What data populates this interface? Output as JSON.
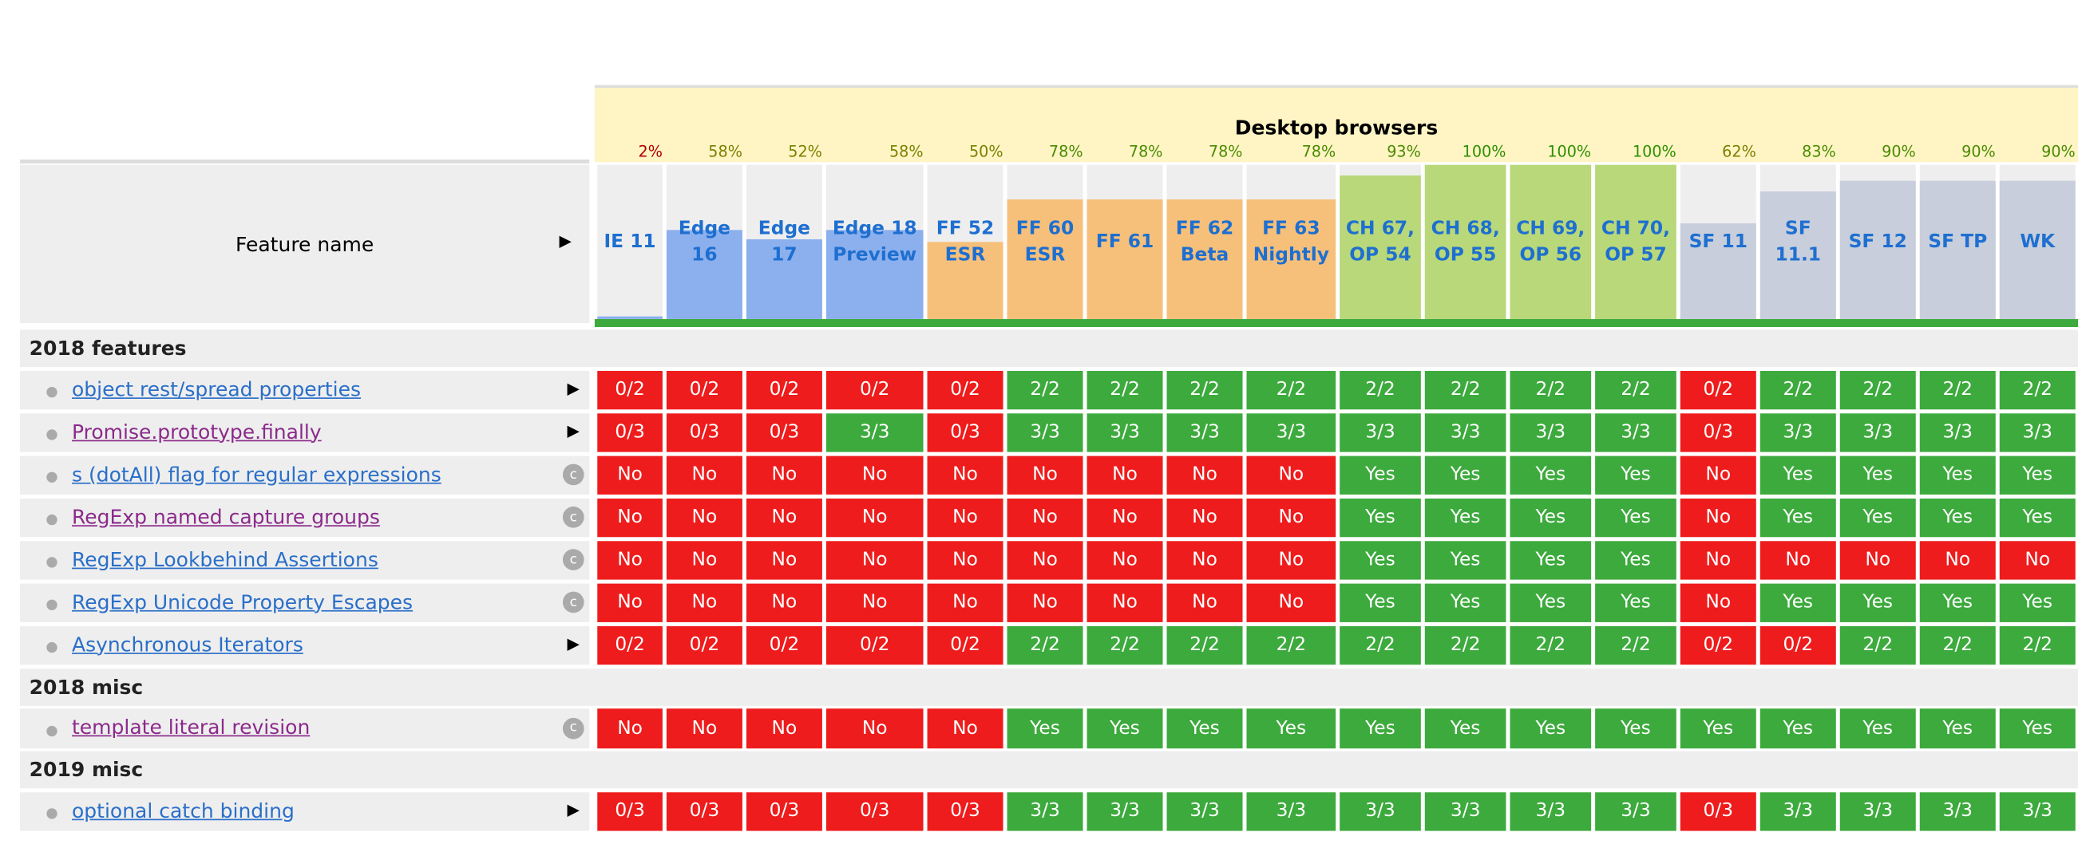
{
  "header": {
    "title": "Desktop browsers",
    "feature_column": "Feature name",
    "feature_column_icon": "▶"
  },
  "browsers": [
    {
      "name": "IE 11",
      "percent": "2%",
      "color": "#8cb0ee"
    },
    {
      "name": "Edge 16",
      "percent": "58%",
      "color": "#8cb0ee"
    },
    {
      "name": "Edge 17",
      "percent": "52%",
      "color": "#8cb0ee"
    },
    {
      "name": "Edge 18 Preview",
      "percent": "58%",
      "color": "#8cb0ee"
    },
    {
      "name": "FF 52 ESR",
      "percent": "50%",
      "color": "#f6c07a"
    },
    {
      "name": "FF 60 ESR",
      "percent": "78%",
      "color": "#f6c07a"
    },
    {
      "name": "FF 61",
      "percent": "78%",
      "color": "#f6c07a"
    },
    {
      "name": "FF 62 Beta",
      "percent": "78%",
      "color": "#f6c07a"
    },
    {
      "name": "FF 63 Nightly",
      "percent": "78%",
      "color": "#f6c07a"
    },
    {
      "name": "CH 67, OP 54",
      "percent": "93%",
      "color": "#b8d87a"
    },
    {
      "name": "CH 68, OP 55",
      "percent": "100%",
      "color": "#b8d87a"
    },
    {
      "name": "CH 69, OP 56",
      "percent": "100%",
      "color": "#b8d87a"
    },
    {
      "name": "CH 70, OP 57",
      "percent": "100%",
      "color": "#b8d87a"
    },
    {
      "name": "SF 11",
      "percent": "62%",
      "color": "#c8cedb"
    },
    {
      "name": "SF 11.1",
      "percent": "83%",
      "color": "#c8cedb"
    },
    {
      "name": "SF 12",
      "percent": "90%",
      "color": "#c8cedb"
    },
    {
      "name": "SF TP",
      "percent": "90%",
      "color": "#c8cedb"
    },
    {
      "name": "WK",
      "percent": "90%",
      "color": "#c8cedb"
    }
  ],
  "sections": [
    {
      "title": "2018 features",
      "features": [
        {
          "name": "object rest/spread properties",
          "icon": "▶",
          "color": "#2a6fc9",
          "results": [
            "0/2",
            "0/2",
            "0/2",
            "0/2",
            "0/2",
            "2/2",
            "2/2",
            "2/2",
            "2/2",
            "2/2",
            "2/2",
            "2/2",
            "2/2",
            "0/2",
            "2/2",
            "2/2",
            "2/2",
            "2/2"
          ]
        },
        {
          "name": "Promise.prototype.finally",
          "icon": "▶",
          "color": "#8b2a8b",
          "results": [
            "0/3",
            "0/3",
            "0/3",
            "3/3",
            "0/3",
            "3/3",
            "3/3",
            "3/3",
            "3/3",
            "3/3",
            "3/3",
            "3/3",
            "3/3",
            "0/3",
            "3/3",
            "3/3",
            "3/3",
            "3/3"
          ]
        },
        {
          "name": "s (dotAll) flag for regular expressions",
          "icon": "c",
          "color": "#2a6fc9",
          "results": [
            "No",
            "No",
            "No",
            "No",
            "No",
            "No",
            "No",
            "No",
            "No",
            "Yes",
            "Yes",
            "Yes",
            "Yes",
            "No",
            "Yes",
            "Yes",
            "Yes",
            "Yes"
          ]
        },
        {
          "name": "RegExp named capture groups",
          "icon": "c",
          "color": "#8b2a8b",
          "results": [
            "No",
            "No",
            "No",
            "No",
            "No",
            "No",
            "No",
            "No",
            "No",
            "Yes",
            "Yes",
            "Yes",
            "Yes",
            "No",
            "Yes",
            "Yes",
            "Yes",
            "Yes"
          ]
        },
        {
          "name": "RegExp Lookbehind Assertions",
          "icon": "c",
          "color": "#2a6fc9",
          "results": [
            "No",
            "No",
            "No",
            "No",
            "No",
            "No",
            "No",
            "No",
            "No",
            "Yes",
            "Yes",
            "Yes",
            "Yes",
            "No",
            "No",
            "No",
            "No",
            "No"
          ]
        },
        {
          "name": "RegExp Unicode Property Escapes",
          "icon": "c",
          "color": "#2a6fc9",
          "results": [
            "No",
            "No",
            "No",
            "No",
            "No",
            "No",
            "No",
            "No",
            "No",
            "Yes",
            "Yes",
            "Yes",
            "Yes",
            "No",
            "Yes",
            "Yes",
            "Yes",
            "Yes"
          ]
        },
        {
          "name": "Asynchronous Iterators",
          "icon": "▶",
          "color": "#2a6fc9",
          "results": [
            "0/2",
            "0/2",
            "0/2",
            "0/2",
            "0/2",
            "2/2",
            "2/2",
            "2/2",
            "2/2",
            "2/2",
            "2/2",
            "2/2",
            "2/2",
            "0/2",
            "0/2",
            "2/2",
            "2/2",
            "2/2"
          ]
        }
      ]
    },
    {
      "title": "2018 misc",
      "features": [
        {
          "name": "template literal revision",
          "icon": "c",
          "color": "#8b2a8b",
          "results": [
            "No",
            "No",
            "No",
            "No",
            "No",
            "Yes",
            "Yes",
            "Yes",
            "Yes",
            "Yes",
            "Yes",
            "Yes",
            "Yes",
            "Yes",
            "Yes",
            "Yes",
            "Yes",
            "Yes"
          ]
        }
      ]
    },
    {
      "title": "2019 misc",
      "features": [
        {
          "name": "optional catch binding",
          "icon": "▶",
          "color": "#2a6fc9",
          "results": [
            "0/3",
            "0/3",
            "0/3",
            "0/3",
            "0/3",
            "3/3",
            "3/3",
            "3/3",
            "3/3",
            "3/3",
            "3/3",
            "3/3",
            "3/3",
            "0/3",
            "3/3",
            "3/3",
            "3/3",
            "3/3"
          ]
        }
      ]
    }
  ]
}
